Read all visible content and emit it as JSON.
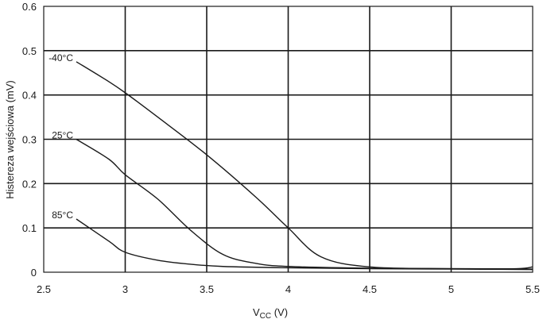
{
  "chart_data": {
    "type": "line",
    "xlabel": "V",
    "xlabel_sub": "CC",
    "xlabel_unit": " (V)",
    "ylabel": "Histereza wejściowa (mV)",
    "xlim": [
      2.5,
      5.5
    ],
    "ylim": [
      0,
      0.6
    ],
    "grid": true,
    "x_ticks": [
      "2.5",
      "3",
      "3.5",
      "4",
      "4.5",
      "5",
      "5.5"
    ],
    "y_ticks": [
      "0",
      "0.1",
      "0.2",
      "0.3",
      "0.4",
      "0.5",
      "0.6"
    ],
    "series": [
      {
        "name": "-40°C",
        "x": [
          2.7,
          2.9,
          3.0,
          3.2,
          3.5,
          3.8,
          4.0,
          4.2,
          4.5,
          5.0,
          5.5
        ],
        "y": [
          0.475,
          0.43,
          0.405,
          0.35,
          0.265,
          0.17,
          0.1,
          0.035,
          0.012,
          0.008,
          0.007
        ]
      },
      {
        "name": "25°C",
        "x": [
          2.7,
          2.9,
          3.0,
          3.2,
          3.4,
          3.6,
          3.8,
          4.0,
          4.5,
          5.0,
          5.4,
          5.5
        ],
        "y": [
          0.3,
          0.255,
          0.22,
          0.165,
          0.095,
          0.04,
          0.02,
          0.013,
          0.009,
          0.008,
          0.008,
          0.012
        ]
      },
      {
        "name": "85°C",
        "x": [
          2.7,
          2.9,
          3.0,
          3.2,
          3.4,
          3.6,
          4.0,
          4.5,
          5.0,
          5.5
        ],
        "y": [
          0.12,
          0.07,
          0.045,
          0.027,
          0.018,
          0.013,
          0.01,
          0.008,
          0.007,
          0.006
        ]
      }
    ]
  }
}
